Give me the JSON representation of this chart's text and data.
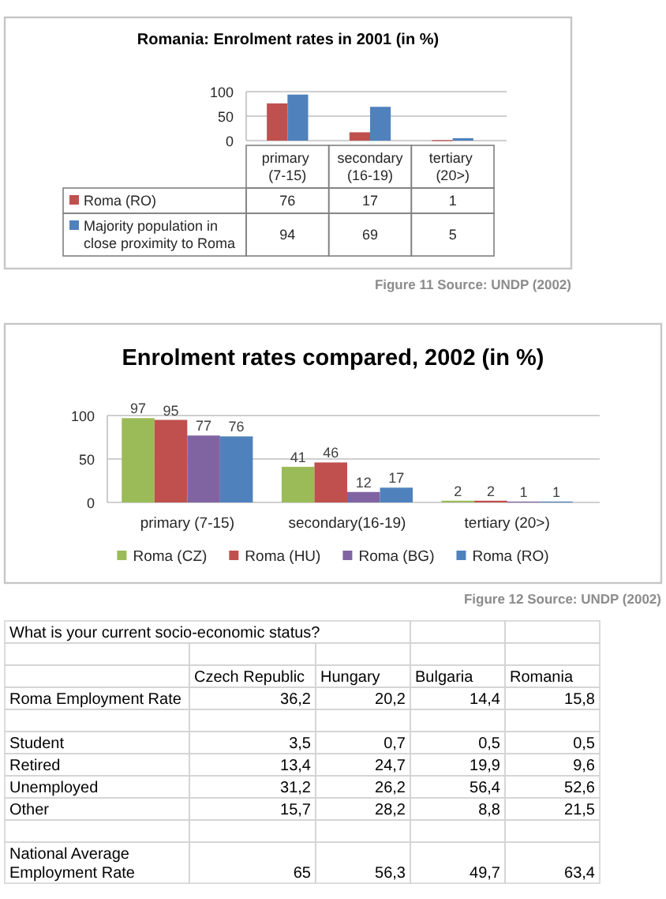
{
  "chart_data": [
    {
      "type": "bar",
      "title": "Romania: Enrolment rates in 2001 (in %)",
      "categories": [
        "primary (7-15)",
        "secondary(16-19)",
        "tertiary (20>)"
      ],
      "series": [
        {
          "name": "Roma (RO)",
          "color": "#c0504d",
          "values": [
            76,
            17,
            1
          ]
        },
        {
          "name": "Majority population in close proximity to Roma",
          "color": "#4f81bd",
          "values": [
            94,
            69,
            5
          ]
        }
      ],
      "ylim": [
        0,
        100
      ],
      "yticks": [
        0,
        50,
        100
      ],
      "grid": "y",
      "legend": "bottom",
      "data_labels": true,
      "annotations": [
        "Figure 11 Source: UNDP (2002)"
      ]
    },
    {
      "type": "bar",
      "title": "Enrolment rates compared, 2002 (in %)",
      "categories": [
        "primary (7-15)",
        "secondary(16-19)",
        "tertiary (20>)"
      ],
      "series": [
        {
          "name": "Roma (CZ)",
          "color": "#9bbb59",
          "values": [
            97,
            41,
            2
          ]
        },
        {
          "name": "Roma (HU)",
          "color": "#c0504d",
          "values": [
            95,
            46,
            2
          ]
        },
        {
          "name": "Roma (BG)",
          "color": "#8064a2",
          "values": [
            77,
            12,
            1
          ]
        },
        {
          "name": "Roma (RO)",
          "color": "#4f81bd",
          "values": [
            76,
            17,
            1
          ]
        }
      ],
      "ylim": [
        0,
        100
      ],
      "yticks": [
        0,
        50,
        100
      ],
      "grid": "y",
      "legend": "bottom",
      "data_labels": true,
      "annotations": [
        "Figure 12 Source: UNDP (2002)"
      ]
    },
    {
      "type": "other",
      "title": "What is your current socio-economic status?",
      "categories": [
        "Czech Republic",
        "Hungary",
        "Bulgaria",
        "Romania"
      ],
      "series": [
        {
          "name": "Roma Employment Rate",
          "values": [
            36.2,
            20.2,
            14.4,
            15.8
          ],
          "value_labels": [
            "36,2",
            "20,2",
            "14,4",
            "15,8"
          ]
        },
        {
          "name": "Student",
          "values": [
            3.5,
            0.7,
            0.5,
            0.5
          ],
          "value_labels": [
            "3,5",
            "0,7",
            "0,5",
            "0,5"
          ]
        },
        {
          "name": "Retired",
          "values": [
            13.4,
            24.7,
            19.9,
            9.6
          ],
          "value_labels": [
            "13,4",
            "24,7",
            "19,9",
            "9,6"
          ]
        },
        {
          "name": "Unemployed",
          "values": [
            31.2,
            26.2,
            56.4,
            52.6
          ],
          "value_labels": [
            "31,2",
            "26,2",
            "56,4",
            "52,6"
          ]
        },
        {
          "name": "Other",
          "values": [
            15.7,
            28.2,
            8.8,
            21.5
          ],
          "value_labels": [
            "15,7",
            "28,2",
            "8,8",
            "21,5"
          ]
        },
        {
          "name": "National Average Employment Rate",
          "values": [
            65,
            56.3,
            49.7,
            63.4
          ],
          "value_labels": [
            "65",
            "56,3",
            "49,7",
            "63,4"
          ]
        }
      ]
    }
  ]
}
